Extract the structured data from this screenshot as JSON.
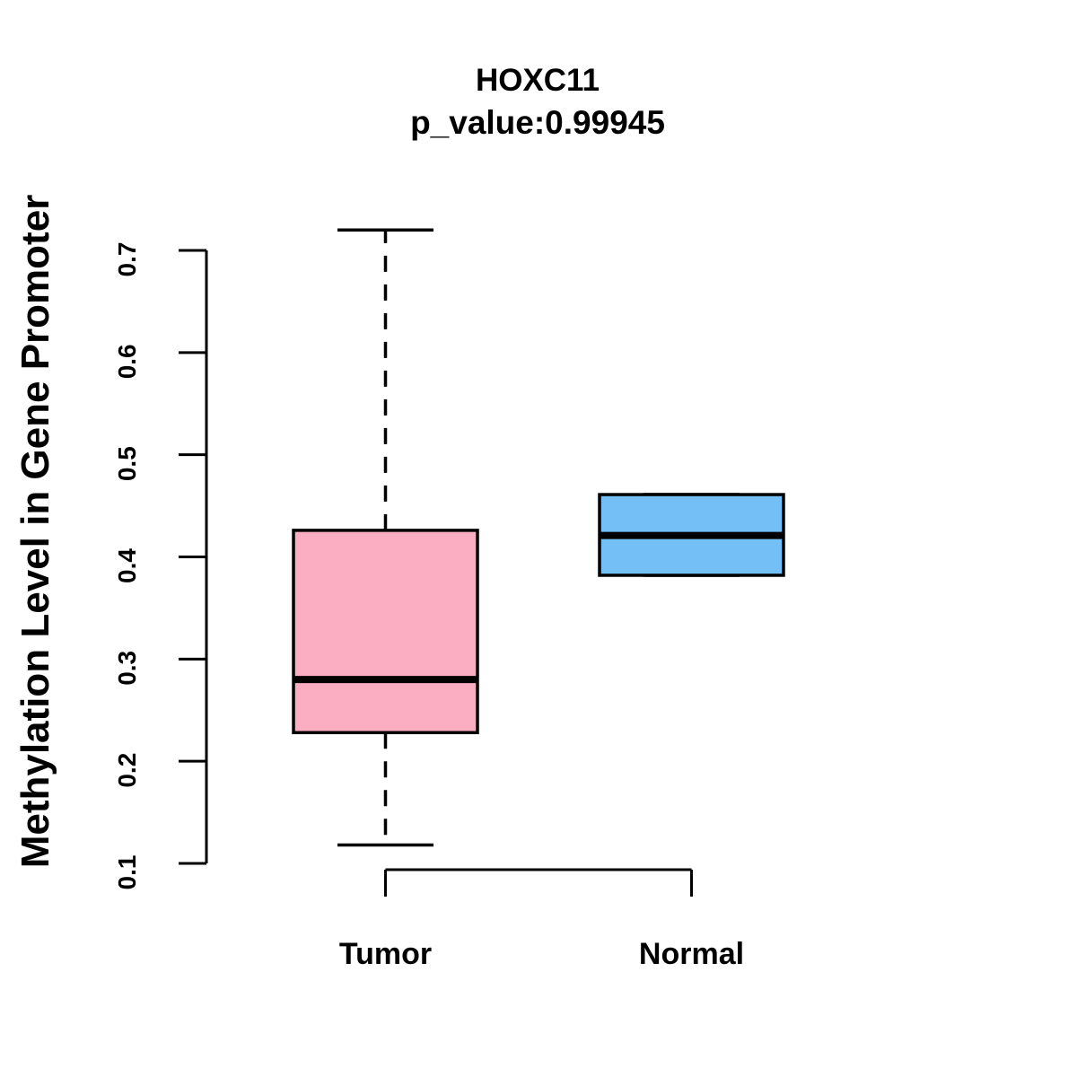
{
  "title": "HOXC11",
  "subtitle": "p_value:0.99945",
  "chart_data": {
    "type": "boxplot",
    "title": "HOXC11",
    "subtitle": "p_value:0.99945",
    "xlabel": "",
    "ylabel": "Methylation Level in Gene Promoter",
    "categories": [
      "Tumor",
      "Normal"
    ],
    "yticks": [
      0.1,
      0.2,
      0.3,
      0.4,
      0.5,
      0.6,
      0.7
    ],
    "ylim": [
      0.08,
      0.74
    ],
    "grid": false,
    "legend_position": "none",
    "series": [
      {
        "name": "Tumor",
        "lower_whisker": 0.118,
        "q1": 0.228,
        "median": 0.28,
        "q3": 0.426,
        "upper_whisker": 0.72,
        "fill_color": "#FBAEC1"
      },
      {
        "name": "Normal",
        "lower_whisker": 0.382,
        "q1": 0.382,
        "median": 0.421,
        "q3": 0.461,
        "upper_whisker": 0.461,
        "fill_color": "#74BFF6"
      }
    ],
    "stroke_color": "#000000",
    "background_color": "#FFFFFF"
  }
}
